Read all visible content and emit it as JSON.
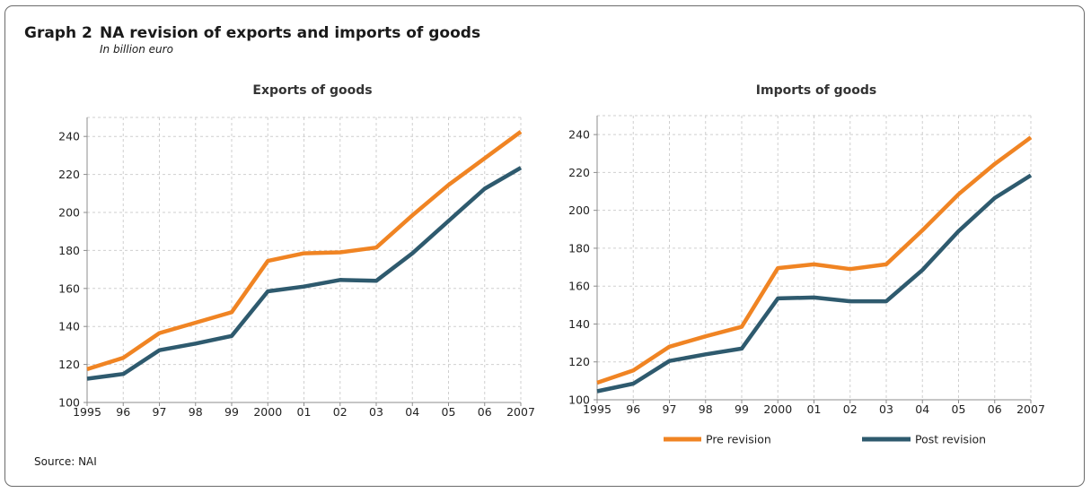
{
  "header": {
    "label": "Graph 2",
    "title": "NA revision of exports and imports of goods",
    "subtitle": "In billion euro"
  },
  "source": "Source: NAI",
  "colors": {
    "pre": "#F08423",
    "post": "#2E5A6E",
    "grid": "#cfcfcf",
    "axis": "#8c8c8c"
  },
  "legend": {
    "placement": "bottom"
  },
  "chart_data": [
    {
      "type": "line",
      "title": "Exports of goods",
      "xlabel": "",
      "ylabel": "",
      "categories": [
        "1995",
        "96",
        "97",
        "98",
        "99",
        "2000",
        "01",
        "02",
        "03",
        "04",
        "05",
        "06",
        "2007"
      ],
      "ylim": [
        100,
        250
      ],
      "yticks": [
        100,
        120,
        140,
        160,
        180,
        200,
        220,
        240
      ],
      "grid": true,
      "series": [
        {
          "name": "Pre revision",
          "values": [
            117.5,
            123.5,
            136.5,
            142,
            147.5,
            174.5,
            178.5,
            179,
            181.5,
            198.5,
            214.5,
            228.5,
            242.5
          ]
        },
        {
          "name": "Post revision",
          "values": [
            112.5,
            115,
            127.5,
            131,
            135,
            158.5,
            161,
            164.5,
            164,
            178.5,
            195.5,
            212.5,
            223.5
          ]
        }
      ]
    },
    {
      "type": "line",
      "title": "Imports of goods",
      "xlabel": "",
      "ylabel": "",
      "categories": [
        "1995",
        "96",
        "97",
        "98",
        "99",
        "2000",
        "01",
        "02",
        "03",
        "04",
        "05",
        "06",
        "2007"
      ],
      "ylim": [
        100,
        250
      ],
      "yticks": [
        100,
        120,
        140,
        160,
        180,
        200,
        220,
        240
      ],
      "grid": true,
      "series": [
        {
          "name": "Pre revision",
          "values": [
            109,
            115.5,
            128,
            133.5,
            138.5,
            169.5,
            171.5,
            169,
            171.5,
            189.5,
            208.5,
            224.5,
            238.5
          ]
        },
        {
          "name": "Post revision",
          "values": [
            104.5,
            108.5,
            120.5,
            124,
            127,
            153.5,
            154,
            152,
            152,
            168.5,
            189,
            206.5,
            218.5
          ]
        }
      ]
    }
  ]
}
